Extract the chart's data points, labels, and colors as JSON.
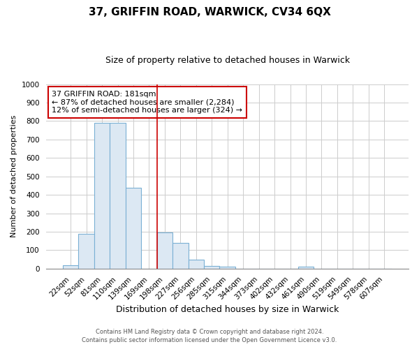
{
  "title": "37, GRIFFIN ROAD, WARWICK, CV34 6QX",
  "subtitle": "Size of property relative to detached houses in Warwick",
  "xlabel": "Distribution of detached houses by size in Warwick",
  "ylabel": "Number of detached properties",
  "bar_labels": [
    "22sqm",
    "52sqm",
    "81sqm",
    "110sqm",
    "139sqm",
    "169sqm",
    "198sqm",
    "227sqm",
    "256sqm",
    "285sqm",
    "315sqm",
    "344sqm",
    "373sqm",
    "402sqm",
    "432sqm",
    "461sqm",
    "490sqm",
    "519sqm",
    "549sqm",
    "578sqm",
    "607sqm"
  ],
  "bar_values": [
    20,
    190,
    790,
    790,
    440,
    0,
    197,
    140,
    50,
    15,
    10,
    0,
    0,
    0,
    0,
    10,
    0,
    0,
    0,
    0,
    0
  ],
  "bar_color": "#dce8f3",
  "bar_edgecolor": "#7ab0d4",
  "vline_x": 5.5,
  "vline_color": "#cc0000",
  "annotation_line1": "37 GRIFFIN ROAD: 181sqm",
  "annotation_line2": "← 87% of detached houses are smaller (2,284)",
  "annotation_line3": "12% of semi-detached houses are larger (324) →",
  "annotation_box_color": "#cc0000",
  "ylim": [
    0,
    1000
  ],
  "yticks": [
    0,
    100,
    200,
    300,
    400,
    500,
    600,
    700,
    800,
    900,
    1000
  ],
  "footer1": "Contains HM Land Registry data © Crown copyright and database right 2024.",
  "footer2": "Contains public sector information licensed under the Open Government Licence v3.0.",
  "background_color": "#ffffff",
  "grid_color": "#cccccc",
  "title_fontsize": 11,
  "subtitle_fontsize": 9,
  "ylabel_fontsize": 8,
  "xlabel_fontsize": 9,
  "tick_fontsize": 7.5,
  "ann_fontsize": 8
}
